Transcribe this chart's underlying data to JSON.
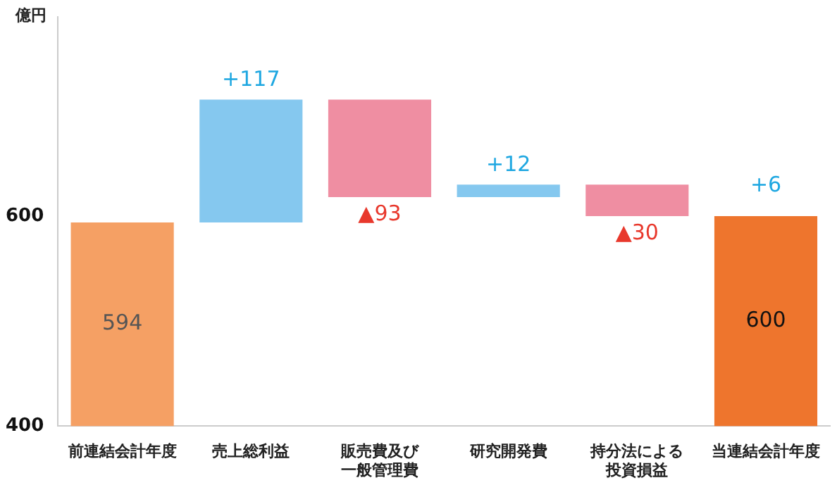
{
  "chart_data": {
    "type": "bar",
    "ylabel": "億円",
    "categories": [
      "前連結会計年度",
      "売上総利益",
      "販売費及び一般管理費",
      "研究開発費",
      "持分法による投資損益",
      "当連結会計年度"
    ],
    "values": [
      594,
      117,
      -93,
      12,
      -30,
      600
    ],
    "base": [
      null,
      594,
      711,
      618,
      630,
      null
    ],
    "colors": [
      "#f5a064",
      "#85c8ef",
      "#ef8ea2",
      "#85c8ef",
      "#ef8ea2",
      "#ee752d"
    ],
    "value_labels": [
      "594",
      "+117",
      "▲93",
      "+12",
      "▲30",
      "600"
    ],
    "annotations": [
      {
        "text": "+6",
        "x": "当連結会計年度",
        "y": 600
      }
    ],
    "ylim": [
      400,
      790
    ],
    "yticks": [
      400,
      600
    ],
    "grid": false,
    "legend": false
  }
}
